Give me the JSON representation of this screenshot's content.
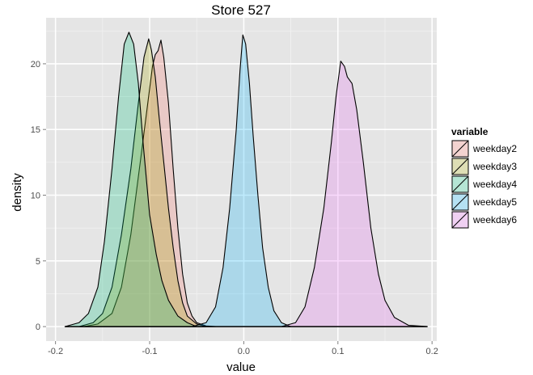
{
  "chart_data": {
    "type": "area",
    "title": "Store 527",
    "xlabel": "value",
    "ylabel": "density",
    "xlim": [
      -0.21,
      0.205
    ],
    "ylim": [
      -1.1,
      23.5
    ],
    "x_ticks": [
      -0.2,
      -0.1,
      0.0,
      0.1,
      0.2
    ],
    "x_tick_labels": [
      "-0.2",
      "-0.1",
      "0.0",
      "0.1",
      "0.2"
    ],
    "y_ticks": [
      0,
      5,
      10,
      15,
      20
    ],
    "y_tick_labels": [
      "0",
      "5",
      "10",
      "15",
      "20"
    ],
    "grid": true,
    "legend_title": "variable",
    "legend_position": "right",
    "series": [
      {
        "name": "weekday2",
        "color": "#F8766D",
        "points": [
          [
            -0.17,
            0
          ],
          [
            -0.155,
            0.2
          ],
          [
            -0.14,
            1.0
          ],
          [
            -0.13,
            3.0
          ],
          [
            -0.12,
            7.0
          ],
          [
            -0.11,
            12.5
          ],
          [
            -0.102,
            17.0
          ],
          [
            -0.097,
            19.8
          ],
          [
            -0.094,
            20.7
          ],
          [
            -0.091,
            21.0
          ],
          [
            -0.088,
            21.8
          ],
          [
            -0.085,
            20.5
          ],
          [
            -0.08,
            17.0
          ],
          [
            -0.075,
            12.0
          ],
          [
            -0.07,
            7.5
          ],
          [
            -0.065,
            4.0
          ],
          [
            -0.06,
            1.8
          ],
          [
            -0.055,
            0.8
          ],
          [
            -0.05,
            0.3
          ],
          [
            -0.04,
            0.05
          ],
          [
            -0.03,
            0
          ]
        ]
      },
      {
        "name": "weekday3",
        "color": "#A3A500",
        "points": [
          [
            -0.175,
            0
          ],
          [
            -0.16,
            0.3
          ],
          [
            -0.15,
            1.0
          ],
          [
            -0.14,
            3.0
          ],
          [
            -0.13,
            7.0
          ],
          [
            -0.12,
            12.0
          ],
          [
            -0.112,
            17.0
          ],
          [
            -0.106,
            20.5
          ],
          [
            -0.101,
            21.9
          ],
          [
            -0.098,
            21.0
          ],
          [
            -0.094,
            19.0
          ],
          [
            -0.09,
            16.0
          ],
          [
            -0.085,
            12.5
          ],
          [
            -0.08,
            9.0
          ],
          [
            -0.075,
            6.0
          ],
          [
            -0.07,
            3.5
          ],
          [
            -0.065,
            1.8
          ],
          [
            -0.06,
            0.8
          ],
          [
            -0.05,
            0.2
          ],
          [
            -0.04,
            0
          ]
        ]
      },
      {
        "name": "weekday4",
        "color": "#00BF7D",
        "points": [
          [
            -0.19,
            0
          ],
          [
            -0.175,
            0.3
          ],
          [
            -0.165,
            1.0
          ],
          [
            -0.155,
            3.0
          ],
          [
            -0.148,
            6.5
          ],
          [
            -0.14,
            12.0
          ],
          [
            -0.133,
            17.5
          ],
          [
            -0.127,
            21.5
          ],
          [
            -0.122,
            22.4
          ],
          [
            -0.117,
            21.5
          ],
          [
            -0.112,
            18.5
          ],
          [
            -0.107,
            14.0
          ],
          [
            -0.1,
            8.5
          ],
          [
            -0.093,
            5.5
          ],
          [
            -0.087,
            3.5
          ],
          [
            -0.08,
            2.0
          ],
          [
            -0.07,
            0.8
          ],
          [
            -0.06,
            0.3
          ],
          [
            -0.05,
            0
          ]
        ]
      },
      {
        "name": "weekday5",
        "color": "#00B0F6",
        "points": [
          [
            -0.055,
            0
          ],
          [
            -0.04,
            0.3
          ],
          [
            -0.03,
            1.5
          ],
          [
            -0.022,
            4.5
          ],
          [
            -0.015,
            9.0
          ],
          [
            -0.008,
            15.0
          ],
          [
            -0.004,
            19.5
          ],
          [
            -0.001,
            22.2
          ],
          [
            0.002,
            21.5
          ],
          [
            0.006,
            18.5
          ],
          [
            0.01,
            14.5
          ],
          [
            0.015,
            10.0
          ],
          [
            0.02,
            6.0
          ],
          [
            0.026,
            3.0
          ],
          [
            0.032,
            1.2
          ],
          [
            0.04,
            0.3
          ],
          [
            0.05,
            0
          ]
        ]
      },
      {
        "name": "weekday6",
        "color": "#E76BF3",
        "points": [
          [
            0.04,
            0
          ],
          [
            0.055,
            0.3
          ],
          [
            0.065,
            1.5
          ],
          [
            0.075,
            4.5
          ],
          [
            0.085,
            9.0
          ],
          [
            0.093,
            14.0
          ],
          [
            0.098,
            17.5
          ],
          [
            0.103,
            20.2
          ],
          [
            0.107,
            19.8
          ],
          [
            0.11,
            19.0
          ],
          [
            0.115,
            18.5
          ],
          [
            0.12,
            16.5
          ],
          [
            0.127,
            12.5
          ],
          [
            0.135,
            7.5
          ],
          [
            0.143,
            4.0
          ],
          [
            0.15,
            2.0
          ],
          [
            0.16,
            0.7
          ],
          [
            0.175,
            0.1
          ],
          [
            0.195,
            0
          ]
        ]
      }
    ]
  }
}
